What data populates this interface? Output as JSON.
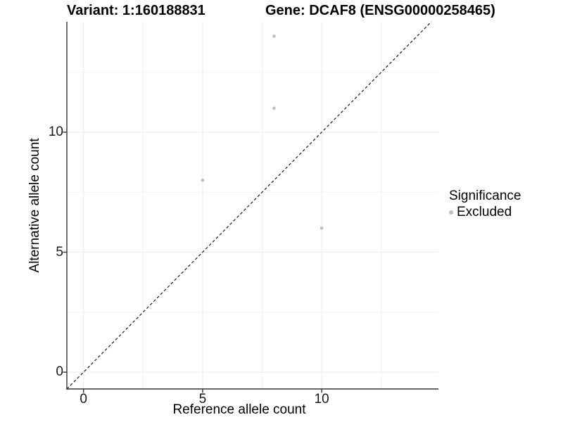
{
  "chart_data": {
    "type": "scatter",
    "title_left": "Variant: 1:160188831",
    "title_right": "Gene: DCAF8 (ENSG00000258465)",
    "xlabel": "Reference allele count",
    "ylabel": "Alternative allele count",
    "xlim": [
      -0.7,
      14.9
    ],
    "ylim": [
      -0.7,
      14.6
    ],
    "x_ticks": [
      0,
      5,
      10
    ],
    "y_ticks": [
      0,
      5,
      10
    ],
    "x_minor_ticks": [
      2.5,
      7.5,
      12.5
    ],
    "y_minor_ticks": [
      2.5,
      7.5,
      12.5
    ],
    "grid": "on",
    "reference_line": {
      "type": "identity y=x",
      "style": "dashed",
      "color": "#1a1a1a"
    },
    "series": [
      {
        "name": "Excluded",
        "color": "#bebebe",
        "points": [
          [
            5,
            8
          ],
          [
            8,
            11
          ],
          [
            8,
            14
          ],
          [
            10,
            6
          ]
        ]
      }
    ],
    "legend": {
      "title": "Significance",
      "position": "right",
      "items": [
        {
          "label": "Excluded",
          "color": "#bebebe"
        }
      ]
    },
    "colors": {
      "grid_major": "#ebebeb",
      "grid_minor": "#f2f2f2",
      "axis": "#333333"
    }
  }
}
